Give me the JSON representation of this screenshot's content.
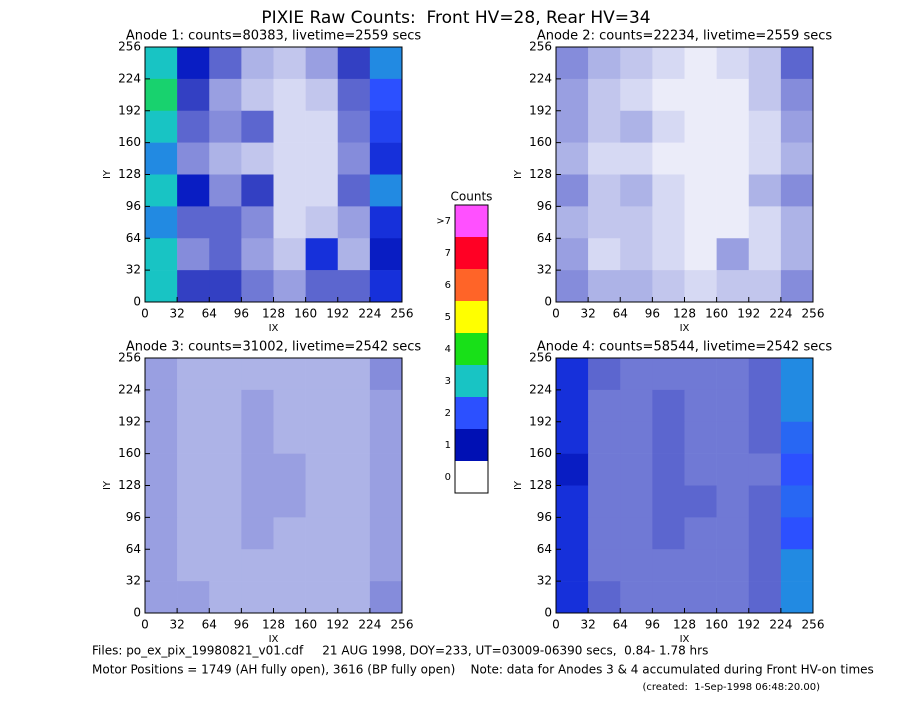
{
  "title": "PIXIE Raw Counts:  Front HV=28, Rear HV=34",
  "chart_data": [
    {
      "type": "heatmap",
      "title": "Anode 1: counts=80383, livetime=2559 secs",
      "xlabel": "IX",
      "ylabel": "IY",
      "xlim": [
        0,
        256
      ],
      "ylim": [
        0,
        256
      ],
      "xticks": [
        0,
        32,
        64,
        96,
        128,
        160,
        192,
        224,
        256
      ],
      "yticks": [
        0,
        32,
        64,
        96,
        128,
        160,
        192,
        224,
        256
      ],
      "values": [
        [
          3,
          1.2,
          0.8,
          0.4,
          0.3,
          0.5,
          1,
          2.5
        ],
        [
          3.5,
          1,
          0.5,
          0.3,
          0.2,
          0.3,
          0.8,
          2
        ],
        [
          3,
          0.8,
          0.6,
          0.8,
          0.2,
          0.2,
          0.7,
          1.8
        ],
        [
          2.5,
          0.6,
          0.4,
          0.3,
          0.2,
          0.2,
          0.6,
          1.5
        ],
        [
          3,
          1.2,
          0.6,
          1,
          0.2,
          0.2,
          0.8,
          2.5
        ],
        [
          2.5,
          0.8,
          0.8,
          0.6,
          0.2,
          0.3,
          0.5,
          1.5
        ],
        [
          3,
          0.6,
          0.8,
          0.5,
          0.3,
          1.5,
          0.4,
          1.2
        ],
        [
          3,
          1,
          1,
          0.7,
          0.5,
          0.8,
          0.8,
          1.5
        ]
      ]
    },
    {
      "type": "heatmap",
      "title": "Anode 2: counts=22234, livetime=2559 secs",
      "xlabel": "IX",
      "ylabel": "IY",
      "xlim": [
        0,
        256
      ],
      "ylim": [
        0,
        256
      ],
      "xticks": [
        0,
        32,
        64,
        96,
        128,
        160,
        192,
        224,
        256
      ],
      "yticks": [
        0,
        32,
        64,
        96,
        128,
        160,
        192,
        224,
        256
      ],
      "values": [
        [
          0.6,
          0.4,
          0.3,
          0.2,
          0.1,
          0.2,
          0.3,
          0.8
        ],
        [
          0.5,
          0.3,
          0.2,
          0.1,
          0.1,
          0.1,
          0.3,
          0.6
        ],
        [
          0.5,
          0.3,
          0.4,
          0.2,
          0.1,
          0.1,
          0.2,
          0.5
        ],
        [
          0.4,
          0.2,
          0.2,
          0.1,
          0.1,
          0.1,
          0.2,
          0.4
        ],
        [
          0.6,
          0.3,
          0.4,
          0.2,
          0.1,
          0.1,
          0.4,
          0.6
        ],
        [
          0.4,
          0.3,
          0.3,
          0.2,
          0.1,
          0.1,
          0.2,
          0.4
        ],
        [
          0.5,
          0.2,
          0.3,
          0.2,
          0.1,
          0.5,
          0.2,
          0.4
        ],
        [
          0.6,
          0.4,
          0.4,
          0.3,
          0.2,
          0.3,
          0.3,
          0.6
        ]
      ]
    },
    {
      "type": "heatmap",
      "title": "Anode 3: counts=31002, livetime=2542 secs",
      "xlabel": "IX",
      "ylabel": "IY",
      "xlim": [
        0,
        256
      ],
      "ylim": [
        0,
        256
      ],
      "xticks": [
        0,
        32,
        64,
        96,
        128,
        160,
        192,
        224,
        256
      ],
      "yticks": [
        0,
        32,
        64,
        96,
        128,
        160,
        192,
        224,
        256
      ],
      "values": [
        [
          0.5,
          0.4,
          0.4,
          0.4,
          0.4,
          0.4,
          0.4,
          0.6
        ],
        [
          0.5,
          0.4,
          0.4,
          0.5,
          0.4,
          0.4,
          0.4,
          0.5
        ],
        [
          0.5,
          0.4,
          0.4,
          0.5,
          0.4,
          0.4,
          0.4,
          0.5
        ],
        [
          0.5,
          0.4,
          0.4,
          0.5,
          0.5,
          0.4,
          0.4,
          0.5
        ],
        [
          0.5,
          0.4,
          0.4,
          0.5,
          0.5,
          0.4,
          0.4,
          0.5
        ],
        [
          0.5,
          0.4,
          0.4,
          0.5,
          0.4,
          0.4,
          0.4,
          0.5
        ],
        [
          0.5,
          0.4,
          0.4,
          0.4,
          0.4,
          0.4,
          0.4,
          0.5
        ],
        [
          0.5,
          0.5,
          0.4,
          0.4,
          0.4,
          0.4,
          0.4,
          0.6
        ]
      ]
    },
    {
      "type": "heatmap",
      "title": "Anode 4: counts=58544, livetime=2542 secs",
      "xlabel": "IX",
      "ylabel": "IY",
      "xlim": [
        0,
        256
      ],
      "ylim": [
        0,
        256
      ],
      "xticks": [
        0,
        32,
        64,
        96,
        128,
        160,
        192,
        224,
        256
      ],
      "yticks": [
        0,
        32,
        64,
        96,
        128,
        160,
        192,
        224,
        256
      ],
      "values": [
        [
          1.5,
          0.8,
          0.7,
          0.7,
          0.7,
          0.7,
          0.8,
          2.5
        ],
        [
          1.5,
          0.7,
          0.7,
          0.8,
          0.7,
          0.7,
          0.8,
          2.5
        ],
        [
          1.5,
          0.7,
          0.7,
          0.8,
          0.7,
          0.7,
          0.8,
          2.2
        ],
        [
          1.2,
          0.7,
          0.7,
          0.8,
          0.7,
          0.7,
          0.7,
          2
        ],
        [
          1.5,
          0.7,
          0.7,
          0.8,
          0.8,
          0.7,
          0.8,
          2.2
        ],
        [
          1.5,
          0.7,
          0.7,
          0.8,
          0.7,
          0.7,
          0.8,
          2
        ],
        [
          1.5,
          0.7,
          0.7,
          0.7,
          0.7,
          0.7,
          0.8,
          2.5
        ],
        [
          1.5,
          0.8,
          0.7,
          0.7,
          0.7,
          0.7,
          0.8,
          2.5
        ]
      ]
    }
  ],
  "colorbar": {
    "title": "Counts",
    "labels": [
      0,
      1,
      2,
      3,
      4,
      5,
      6,
      7,
      ">7"
    ],
    "colors": [
      "#ffffff",
      "#0010b4",
      "#2c50ff",
      "#18c4c4",
      "#18e018",
      "#ffff00",
      "#ff6428",
      "#ff0024",
      "#ff50ff"
    ]
  },
  "footer": {
    "files": "Files: po_ex_pix_19980821_v01.cdf     21 AUG 1998, DOY=233, UT=03009-06390 secs,  0.84- 1.78 hrs",
    "motor": "Motor Positions = 1749 (AH fully open), 3616 (BP fully open)    Note: data for Anodes 3 & 4 accumulated during Front HV-on times",
    "created": "(created:  1-Sep-1998 06:48:20.00)"
  }
}
